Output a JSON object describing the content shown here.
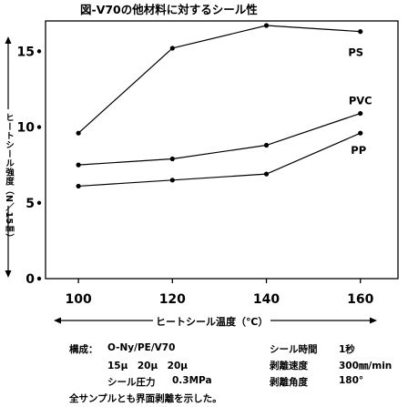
{
  "title": "図-V70の他材料に対するシール性",
  "ylabel": "ヒートシール強度（N／15㎜）",
  "xlabel": "ヒートシール温度（℃）",
  "notes": {
    "composition_label": "構成：",
    "composition_value": "O-Ny/PE/V70",
    "thickness_value": "15μ　20μ　20μ",
    "pressure_label": "シール圧力",
    "pressure_value": "0.3MPa",
    "time_label": "シール時間",
    "time_value": "1秒",
    "speed_label": "剥離速度",
    "speed_value": "300㎜/min",
    "angle_label": "剥離角度",
    "angle_value": "180°",
    "footnote": "全サンプルとも界面剥離を示した。"
  },
  "chart_data": {
    "type": "line",
    "title": "図-V70の他材料に対するシール性",
    "xlabel": "ヒートシール温度（℃）",
    "ylabel": "ヒートシール強度（N／15㎜）",
    "x": [
      100,
      120,
      140,
      160
    ],
    "xlim": [
      93,
      168
    ],
    "ylim": [
      0,
      17
    ],
    "xticks": [
      100,
      120,
      140,
      160
    ],
    "yticks": [
      0,
      5,
      10,
      15
    ],
    "grid": false,
    "series": [
      {
        "name": "PS",
        "values": [
          9.6,
          15.2,
          16.7,
          16.3
        ]
      },
      {
        "name": "PVC",
        "values": [
          7.5,
          7.9,
          8.8,
          10.9
        ]
      },
      {
        "name": "PP",
        "values": [
          6.1,
          6.5,
          6.9,
          9.6
        ]
      }
    ]
  }
}
